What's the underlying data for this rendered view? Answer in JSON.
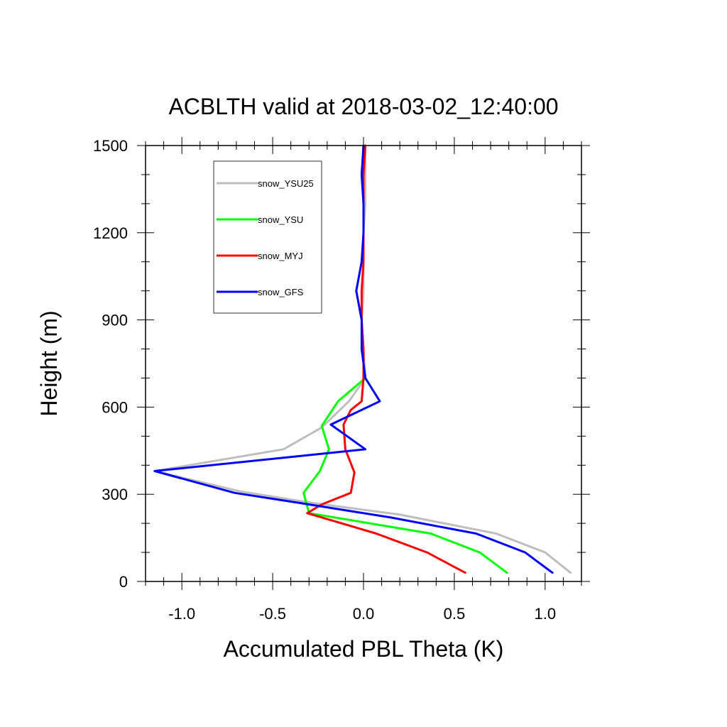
{
  "chart_data": {
    "type": "line",
    "title": "ACBLTH valid at 2018-03-02_12:40:00",
    "xlabel": "Accumulated PBL Theta (K)",
    "ylabel": "Height (m)",
    "xlim": [
      -1.2,
      1.2
    ],
    "ylim": [
      0,
      1500
    ],
    "x_ticks": [
      -1.0,
      -0.5,
      0.0,
      0.5,
      1.0
    ],
    "x_tick_labels": [
      "-1.0",
      "-0.5",
      "0.0",
      "0.5",
      "1.0"
    ],
    "y_ticks": [
      0,
      300,
      600,
      900,
      1200,
      1500
    ],
    "y_tick_labels": [
      "0",
      "300",
      "600",
      "900",
      "1200",
      "1500"
    ],
    "legend_position": "top-left",
    "series": [
      {
        "name": "snow_YSU25",
        "color": "#bebebe",
        "points": [
          [
            1.14,
            30
          ],
          [
            1.0,
            100
          ],
          [
            0.73,
            165
          ],
          [
            0.2,
            230
          ],
          [
            -0.28,
            270
          ],
          [
            -0.68,
            310
          ],
          [
            -1.15,
            380
          ],
          [
            -0.44,
            455
          ],
          [
            -0.23,
            530
          ],
          [
            -0.08,
            620
          ],
          [
            0.01,
            700
          ],
          [
            0.0,
            800
          ],
          [
            -0.01,
            900
          ],
          [
            0.0,
            1000
          ],
          [
            0.0,
            1100
          ],
          [
            0.0,
            1200
          ],
          [
            0.01,
            1300
          ],
          [
            0.01,
            1400
          ],
          [
            0.01,
            1500
          ]
        ]
      },
      {
        "name": "snow_YSU",
        "color": "#00ff00",
        "points": [
          [
            0.79,
            30
          ],
          [
            0.64,
            100
          ],
          [
            0.37,
            165
          ],
          [
            -0.3,
            235
          ],
          [
            -0.33,
            305
          ],
          [
            -0.24,
            380
          ],
          [
            -0.19,
            455
          ],
          [
            -0.23,
            535
          ],
          [
            -0.14,
            620
          ],
          [
            0.01,
            700
          ]
        ]
      },
      {
        "name": "snow_MYJ",
        "color": "#ff0000",
        "points": [
          [
            0.56,
            30
          ],
          [
            0.35,
            100
          ],
          [
            0.07,
            165
          ],
          [
            -0.31,
            235
          ],
          [
            -0.23,
            265
          ],
          [
            -0.07,
            305
          ],
          [
            -0.05,
            375
          ],
          [
            -0.1,
            455
          ],
          [
            -0.11,
            540
          ],
          [
            -0.07,
            590
          ],
          [
            -0.01,
            620
          ],
          [
            0.0,
            700
          ],
          [
            0.0,
            800
          ],
          [
            -0.01,
            900
          ],
          [
            -0.01,
            1000
          ],
          [
            0.0,
            1100
          ],
          [
            0.0,
            1200
          ],
          [
            0.0,
            1300
          ],
          [
            0.0,
            1400
          ],
          [
            0.01,
            1500
          ]
        ]
      },
      {
        "name": "snow_GFS",
        "color": "#0000ff",
        "points": [
          [
            1.04,
            30
          ],
          [
            0.89,
            100
          ],
          [
            0.62,
            165
          ],
          [
            0.15,
            220
          ],
          [
            -0.35,
            270
          ],
          [
            -0.71,
            305
          ],
          [
            -1.15,
            380
          ],
          [
            0.01,
            455
          ],
          [
            -0.18,
            540
          ],
          [
            0.09,
            620
          ],
          [
            0.01,
            700
          ],
          [
            -0.01,
            800
          ],
          [
            -0.01,
            900
          ],
          [
            -0.04,
            1000
          ],
          [
            -0.01,
            1100
          ],
          [
            0.0,
            1200
          ],
          [
            0.0,
            1300
          ],
          [
            -0.01,
            1400
          ],
          [
            0.0,
            1500
          ]
        ]
      }
    ]
  }
}
